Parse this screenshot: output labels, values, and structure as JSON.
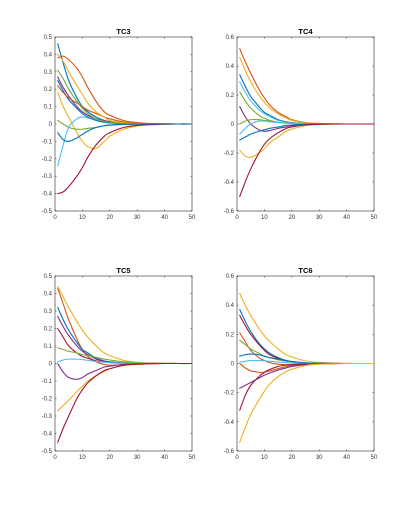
{
  "colors": [
    "#0072BD",
    "#D95319",
    "#EDB120",
    "#7E2F8E",
    "#77AC30",
    "#4DBEEE",
    "#A2142F"
  ],
  "chart_data": [
    {
      "type": "line",
      "title": "TC3",
      "xlim": [
        0,
        50
      ],
      "ylim": [
        -0.5,
        0.5
      ],
      "xticks": [
        "0",
        "10",
        "20",
        "30",
        "40",
        "50"
      ],
      "yticks": [
        "-0.5",
        "-0.4",
        "-0.3",
        "-0.2",
        "-0.1",
        "0",
        "0.1",
        "0.2",
        "0.3",
        "0.4",
        "0.5"
      ],
      "x": [
        1,
        3,
        5,
        8,
        10,
        12,
        15,
        18,
        20,
        25,
        30,
        35,
        40,
        45,
        50
      ],
      "series": [
        {
          "color": "#0072BD",
          "values": [
            0.46,
            0.35,
            0.25,
            0.15,
            0.1,
            0.07,
            0.04,
            0.02,
            0.015,
            0.005,
            0.002,
            0.001,
            0,
            0,
            0
          ]
        },
        {
          "color": "#D95319",
          "values": [
            0.38,
            0.39,
            0.37,
            0.32,
            0.27,
            0.21,
            0.13,
            0.07,
            0.05,
            0.02,
            0.008,
            0.003,
            0.001,
            0,
            0
          ]
        },
        {
          "color": "#EDB120",
          "values": [
            0.18,
            0.1,
            0.04,
            -0.05,
            -0.1,
            -0.13,
            -0.14,
            -0.1,
            -0.07,
            -0.03,
            -0.012,
            -0.005,
            -0.002,
            0,
            0
          ]
        },
        {
          "color": "#7E2F8E",
          "values": [
            0.27,
            0.21,
            0.16,
            0.1,
            0.07,
            0.05,
            0.03,
            0.02,
            0.012,
            0.004,
            0.001,
            0,
            0,
            0,
            0
          ]
        },
        {
          "color": "#77AC30",
          "values": [
            0.02,
            0.0,
            -0.02,
            -0.03,
            -0.03,
            -0.025,
            -0.02,
            -0.01,
            -0.007,
            -0.003,
            -0.001,
            0,
            0,
            0,
            0
          ]
        },
        {
          "color": "#4DBEEE",
          "values": [
            -0.24,
            -0.12,
            -0.02,
            0.03,
            0.04,
            0.035,
            0.025,
            0.015,
            0.01,
            0.003,
            0.001,
            0,
            0,
            0,
            0
          ]
        },
        {
          "color": "#A2142F",
          "values": [
            -0.4,
            -0.39,
            -0.36,
            -0.3,
            -0.25,
            -0.19,
            -0.12,
            -0.07,
            -0.05,
            -0.02,
            -0.008,
            -0.003,
            -0.001,
            0,
            0
          ]
        },
        {
          "color": "#0072BD",
          "values": [
            0.25,
            0.19,
            0.14,
            0.09,
            0.06,
            0.04,
            0.02,
            0.01,
            0.006,
            0.002,
            0.001,
            0,
            0,
            0,
            0
          ]
        },
        {
          "color": "#D95319",
          "values": [
            0.22,
            0.18,
            0.15,
            0.12,
            0.1,
            0.08,
            0.06,
            0.04,
            0.03,
            0.012,
            0.005,
            0.002,
            0.001,
            0,
            0
          ]
        },
        {
          "color": "#EDB120",
          "values": [
            0.4,
            0.36,
            0.3,
            0.22,
            0.17,
            0.12,
            0.07,
            0.04,
            0.02,
            0.007,
            0.002,
            0.001,
            0,
            0,
            0
          ]
        },
        {
          "color": "#77AC30",
          "values": [
            0.31,
            0.26,
            0.2,
            0.13,
            0.09,
            0.06,
            0.03,
            0.015,
            0.01,
            0.003,
            0.001,
            0,
            0,
            0,
            0
          ]
        },
        {
          "color": "#0072BD",
          "values": [
            -0.05,
            -0.09,
            -0.1,
            -0.08,
            -0.06,
            -0.04,
            -0.02,
            -0.01,
            -0.006,
            -0.002,
            -0.001,
            0,
            0,
            0,
            0
          ]
        }
      ]
    },
    {
      "type": "line",
      "title": "TC4",
      "xlim": [
        0,
        50
      ],
      "ylim": [
        -0.6,
        0.6
      ],
      "xticks": [
        "0",
        "10",
        "20",
        "30",
        "40",
        "50"
      ],
      "yticks": [
        "-0.6",
        "-0.4",
        "-0.2",
        "0",
        "0.2",
        "0.4",
        "0.6"
      ],
      "x": [
        1,
        3,
        5,
        8,
        10,
        12,
        15,
        18,
        20,
        25,
        30,
        35,
        40,
        45,
        50
      ],
      "series": [
        {
          "color": "#D95319",
          "values": [
            0.52,
            0.43,
            0.35,
            0.24,
            0.18,
            0.13,
            0.08,
            0.05,
            0.03,
            0.01,
            0.004,
            0.001,
            0,
            0,
            0
          ]
        },
        {
          "color": "#EDB120",
          "values": [
            0.46,
            0.37,
            0.29,
            0.2,
            0.15,
            0.11,
            0.07,
            0.04,
            0.025,
            0.008,
            0.003,
            0.001,
            0,
            0,
            0
          ]
        },
        {
          "color": "#0072BD",
          "values": [
            0.34,
            0.26,
            0.19,
            0.12,
            0.08,
            0.06,
            0.03,
            0.015,
            0.01,
            0.003,
            0.001,
            0,
            0,
            0,
            0
          ]
        },
        {
          "color": "#4DBEEE",
          "values": [
            0.29,
            0.22,
            0.16,
            0.1,
            0.07,
            0.05,
            0.025,
            0.012,
            0.008,
            0.002,
            0,
            0,
            0,
            0,
            0
          ]
        },
        {
          "color": "#77AC30",
          "values": [
            0.22,
            0.16,
            0.11,
            0.06,
            0.04,
            0.025,
            0.012,
            0.006,
            0.004,
            0.001,
            0,
            0,
            0,
            0,
            0
          ]
        },
        {
          "color": "#7E2F8E",
          "values": [
            0.12,
            0.05,
            0.0,
            -0.04,
            -0.05,
            -0.045,
            -0.03,
            -0.02,
            -0.012,
            -0.004,
            -0.001,
            0,
            0,
            0,
            0
          ]
        },
        {
          "color": "#77AC30",
          "values": [
            0.0,
            0.02,
            0.03,
            0.03,
            0.025,
            0.02,
            0.012,
            0.007,
            0.005,
            0.002,
            0.001,
            0,
            0,
            0,
            0
          ]
        },
        {
          "color": "#4DBEEE",
          "values": [
            -0.07,
            -0.03,
            0.0,
            0.02,
            0.02,
            0.015,
            0.01,
            0.005,
            0.003,
            0.001,
            0,
            0,
            0,
            0,
            0
          ]
        },
        {
          "color": "#0072BD",
          "values": [
            -0.11,
            -0.09,
            -0.07,
            -0.05,
            -0.04,
            -0.03,
            -0.02,
            -0.01,
            -0.007,
            -0.002,
            -0.001,
            0,
            0,
            0,
            0
          ]
        },
        {
          "color": "#EDB120",
          "values": [
            -0.18,
            -0.22,
            -0.23,
            -0.2,
            -0.17,
            -0.13,
            -0.09,
            -0.05,
            -0.035,
            -0.012,
            -0.004,
            -0.001,
            0,
            0,
            0
          ]
        },
        {
          "color": "#A2142F",
          "values": [
            -0.5,
            -0.4,
            -0.31,
            -0.2,
            -0.14,
            -0.1,
            -0.06,
            -0.03,
            -0.02,
            -0.006,
            -0.002,
            0,
            0,
            0,
            0
          ]
        }
      ]
    },
    {
      "type": "line",
      "title": "TC5",
      "xlim": [
        0,
        50
      ],
      "ylim": [
        -0.5,
        0.5
      ],
      "xticks": [
        "0",
        "10",
        "20",
        "30",
        "40",
        "50"
      ],
      "yticks": [
        "-0.5",
        "-0.4",
        "-0.3",
        "-0.2",
        "-0.1",
        "0",
        "0.1",
        "0.2",
        "0.3",
        "0.4",
        "0.5"
      ],
      "x": [
        1,
        3,
        5,
        8,
        10,
        12,
        15,
        18,
        20,
        25,
        30,
        35,
        40,
        45,
        50
      ],
      "series": [
        {
          "color": "#D95319",
          "values": [
            0.43,
            0.34,
            0.25,
            0.14,
            0.08,
            0.04,
            0.01,
            -0.005,
            -0.01,
            -0.008,
            -0.004,
            -0.002,
            0,
            0,
            0
          ]
        },
        {
          "color": "#EDB120",
          "values": [
            0.44,
            0.38,
            0.32,
            0.24,
            0.19,
            0.15,
            0.1,
            0.06,
            0.045,
            0.018,
            0.007,
            0.003,
            0.001,
            0,
            0
          ]
        },
        {
          "color": "#0072BD",
          "values": [
            0.32,
            0.25,
            0.19,
            0.12,
            0.08,
            0.06,
            0.03,
            0.015,
            0.01,
            0.003,
            0.001,
            0,
            0,
            0,
            0
          ]
        },
        {
          "color": "#7E2F8E",
          "values": [
            0.27,
            0.21,
            0.16,
            0.1,
            0.07,
            0.05,
            0.025,
            0.012,
            0.008,
            0.002,
            0,
            0,
            0,
            0,
            0
          ]
        },
        {
          "color": "#A2142F",
          "values": [
            0.2,
            0.15,
            0.1,
            0.06,
            0.04,
            0.03,
            0.015,
            0.008,
            0.005,
            0.001,
            0,
            0,
            0,
            0,
            0
          ]
        },
        {
          "color": "#77AC30",
          "values": [
            0.09,
            0.08,
            0.07,
            0.06,
            0.05,
            0.045,
            0.035,
            0.025,
            0.02,
            0.01,
            0.004,
            0.002,
            0.001,
            0,
            0
          ]
        },
        {
          "color": "#4DBEEE",
          "values": [
            0.01,
            0.02,
            0.025,
            0.025,
            0.022,
            0.018,
            0.012,
            0.008,
            0.005,
            0.002,
            0.001,
            0,
            0,
            0,
            0
          ]
        },
        {
          "color": "#7E2F8E",
          "values": [
            0.0,
            -0.05,
            -0.08,
            -0.09,
            -0.08,
            -0.06,
            -0.04,
            -0.02,
            -0.015,
            -0.005,
            -0.002,
            0,
            0,
            0,
            0
          ]
        },
        {
          "color": "#EDB120",
          "values": [
            -0.27,
            -0.24,
            -0.21,
            -0.16,
            -0.13,
            -0.1,
            -0.07,
            -0.045,
            -0.03,
            -0.012,
            -0.005,
            -0.002,
            0,
            0,
            0
          ]
        },
        {
          "color": "#A2142F",
          "values": [
            -0.45,
            -0.37,
            -0.3,
            -0.2,
            -0.15,
            -0.11,
            -0.07,
            -0.04,
            -0.03,
            -0.01,
            -0.004,
            -0.001,
            0,
            0,
            0
          ]
        }
      ]
    },
    {
      "type": "line",
      "title": "TC6",
      "xlim": [
        0,
        50
      ],
      "ylim": [
        -0.6,
        0.6
      ],
      "xticks": [
        "0",
        "10",
        "20",
        "30",
        "40",
        "50"
      ],
      "yticks": [
        "-0.6",
        "-0.4",
        "-0.2",
        "0",
        "0.2",
        "0.4",
        "0.6"
      ],
      "x": [
        1,
        3,
        5,
        8,
        10,
        12,
        15,
        18,
        20,
        25,
        30,
        35,
        40,
        45,
        50
      ],
      "series": [
        {
          "color": "#EDB120",
          "values": [
            0.48,
            0.4,
            0.33,
            0.24,
            0.19,
            0.15,
            0.1,
            0.06,
            0.045,
            0.018,
            0.007,
            0.003,
            0.001,
            0,
            0
          ]
        },
        {
          "color": "#0072BD",
          "values": [
            0.37,
            0.29,
            0.22,
            0.14,
            0.1,
            0.07,
            0.04,
            0.02,
            0.014,
            0.004,
            0.001,
            0,
            0,
            0,
            0
          ]
        },
        {
          "color": "#A2142F",
          "values": [
            0.33,
            0.26,
            0.2,
            0.13,
            0.09,
            0.06,
            0.035,
            0.018,
            0.012,
            0.004,
            0.001,
            0,
            0,
            0,
            0
          ]
        },
        {
          "color": "#D95319",
          "values": [
            0.21,
            0.15,
            0.09,
            0.04,
            0.02,
            0.005,
            -0.005,
            -0.008,
            -0.007,
            -0.004,
            -0.002,
            0,
            0,
            0,
            0
          ]
        },
        {
          "color": "#77AC30",
          "values": [
            0.16,
            0.13,
            0.1,
            0.07,
            0.05,
            0.04,
            0.025,
            0.015,
            0.01,
            0.003,
            0.001,
            0,
            0,
            0,
            0
          ]
        },
        {
          "color": "#0072BD",
          "values": [
            0.05,
            0.06,
            0.065,
            0.06,
            0.05,
            0.04,
            0.03,
            0.02,
            0.014,
            0.005,
            0.002,
            0.001,
            0,
            0,
            0
          ]
        },
        {
          "color": "#4DBEEE",
          "values": [
            0.01,
            0.015,
            0.02,
            0.02,
            0.018,
            0.015,
            0.01,
            0.006,
            0.004,
            0.001,
            0,
            0,
            0,
            0,
            0
          ]
        },
        {
          "color": "#D95319",
          "values": [
            0.0,
            -0.03,
            -0.05,
            -0.06,
            -0.06,
            -0.05,
            -0.035,
            -0.02,
            -0.015,
            -0.005,
            -0.002,
            0,
            0,
            0,
            0
          ]
        },
        {
          "color": "#7E2F8E",
          "values": [
            -0.17,
            -0.15,
            -0.13,
            -0.1,
            -0.08,
            -0.065,
            -0.045,
            -0.03,
            -0.02,
            -0.008,
            -0.003,
            -0.001,
            0,
            0,
            0
          ]
        },
        {
          "color": "#A2142F",
          "values": [
            -0.32,
            -0.22,
            -0.15,
            -0.09,
            -0.06,
            -0.04,
            -0.02,
            -0.01,
            -0.007,
            -0.002,
            -0.001,
            0,
            0,
            0,
            0
          ]
        },
        {
          "color": "#EDB120",
          "values": [
            -0.54,
            -0.44,
            -0.35,
            -0.25,
            -0.19,
            -0.14,
            -0.09,
            -0.055,
            -0.04,
            -0.014,
            -0.005,
            -0.002,
            0,
            0,
            0
          ]
        }
      ]
    }
  ]
}
